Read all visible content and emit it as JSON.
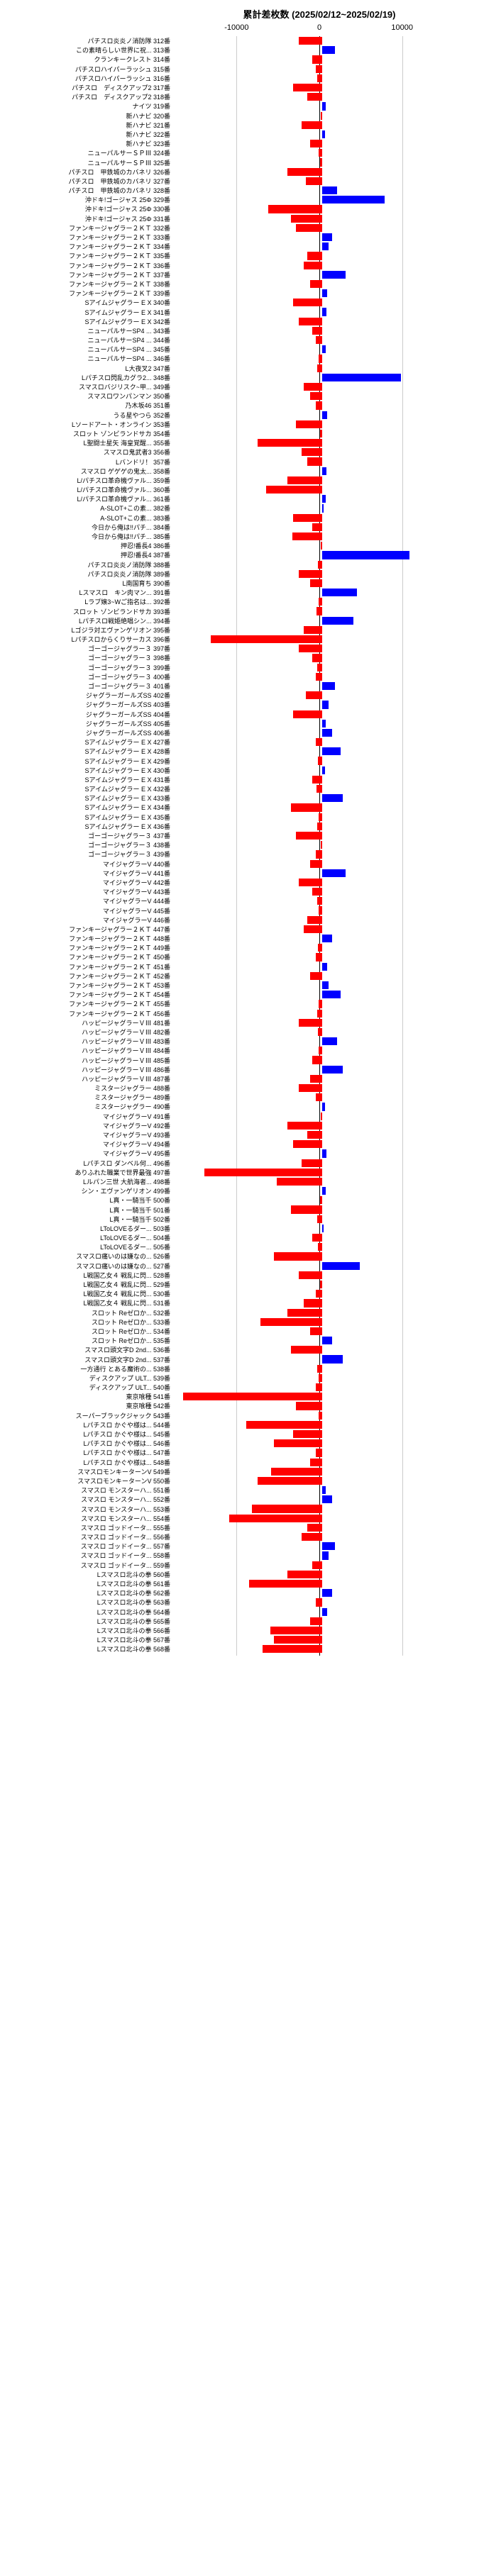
{
  "chart": {
    "title": "累計差枚数 (2025/02/12~2025/02/19)",
    "title_fontsize": 13,
    "xlim": [
      -18000,
      18000
    ],
    "xticks": [
      -10000,
      0,
      10000
    ],
    "label_width": 230,
    "bar_area_width": 420,
    "row_height": 13.2,
    "label_fontsize": 9,
    "tick_fontsize": 11,
    "neg_color": "#ff0000",
    "pos_color": "#0000ff",
    "zero_line_color": "#000000",
    "grid_line_color": "#cccccc",
    "background_color": "#ffffff",
    "data": [
      {
        "label": "パチスロ炎炎ノ消防隊",
        "n": "312番",
        "v": -2800
      },
      {
        "label": "この素晴らしい世界に祝...",
        "n": "313番",
        "v": 1500
      },
      {
        "label": "クランキークレスト",
        "n": "314番",
        "v": -1200
      },
      {
        "label": "パチスロハイパーラッシュ",
        "n": "315番",
        "v": -800
      },
      {
        "label": "パチスロハイパーラッシュ",
        "n": "316番",
        "v": -600
      },
      {
        "label": "パチスロ　ディスクアップ2",
        "n": "317番",
        "v": -3500
      },
      {
        "label": "パチスロ　ディスクアップ2",
        "n": "318番",
        "v": -1800
      },
      {
        "label": "ナイツ",
        "n": "319番",
        "v": 400
      },
      {
        "label": "新ハナビ",
        "n": "320番",
        "v": -200
      },
      {
        "label": "新ハナビ",
        "n": "321番",
        "v": -2500
      },
      {
        "label": "新ハナビ",
        "n": "322番",
        "v": 300
      },
      {
        "label": "新ハナビ",
        "n": "323番",
        "v": -1500
      },
      {
        "label": "ニューパルサーＳＰⅢ",
        "n": "324番",
        "v": -400
      },
      {
        "label": "ニューパルサーＳＰⅢ",
        "n": "325番",
        "v": -300
      },
      {
        "label": "パチスロ　甲鉄城のカバネリ",
        "n": "326番",
        "v": -4200
      },
      {
        "label": "パチスロ　甲鉄城のカバネリ",
        "n": "327番",
        "v": -2000
      },
      {
        "label": "パチスロ　甲鉄城のカバネリ",
        "n": "328番",
        "v": 1800
      },
      {
        "label": "沖ドキ!ゴージャス 25Φ",
        "n": "329番",
        "v": 7500
      },
      {
        "label": "沖ドキ!ゴージャス 25Φ",
        "n": "330番",
        "v": -6500
      },
      {
        "label": "沖ドキ!ゴージャス 25Φ",
        "n": "331番",
        "v": -3800
      },
      {
        "label": "ファンキージャグラー２ＫＴ",
        "n": "332番",
        "v": -3200
      },
      {
        "label": "ファンキージャグラー２ＫＴ",
        "n": "333番",
        "v": 1200
      },
      {
        "label": "ファンキージャグラー２ＫＴ",
        "n": "334番",
        "v": 800
      },
      {
        "label": "ファンキージャグラー２ＫＴ",
        "n": "335番",
        "v": -1800
      },
      {
        "label": "ファンキージャグラー２ＫＴ",
        "n": "336番",
        "v": -2200
      },
      {
        "label": "ファンキージャグラー２ＫＴ",
        "n": "337番",
        "v": 2800
      },
      {
        "label": "ファンキージャグラー２ＫＴ",
        "n": "338番",
        "v": -1500
      },
      {
        "label": "ファンキージャグラー２ＫＴ",
        "n": "339番",
        "v": 600
      },
      {
        "label": "Sアイムジャグラー E X",
        "n": "340番",
        "v": -3500
      },
      {
        "label": "Sアイムジャグラー E X",
        "n": "341番",
        "v": 500
      },
      {
        "label": "Sアイムジャグラー E X",
        "n": "342番",
        "v": -2800
      },
      {
        "label": "ニューパルサーSP4 ...",
        "n": "343番",
        "v": -1200
      },
      {
        "label": "ニューパルサーSP4 ...",
        "n": "344番",
        "v": -800
      },
      {
        "label": "ニューパルサーSP4 ...",
        "n": "345番",
        "v": 400
      },
      {
        "label": "ニューパルサーSP4 ...",
        "n": "346番",
        "v": -400
      },
      {
        "label": "L大夜叉2",
        "n": "347番",
        "v": -600
      },
      {
        "label": "Lパチスロ閃乱カグラ2...",
        "n": "348番",
        "v": 9500
      },
      {
        "label": "スマスロバジリスク~甲...",
        "n": "349番",
        "v": -2200
      },
      {
        "label": "スマスロワンパンマン",
        "n": "350番",
        "v": -1500
      },
      {
        "label": "乃木坂46",
        "n": "351番",
        "v": -800
      },
      {
        "label": "うる星やつら",
        "n": "352番",
        "v": 600
      },
      {
        "label": "Lソードアート・オンライン",
        "n": "353番",
        "v": -3200
      },
      {
        "label": "スロット ゾンビランドサカ",
        "n": "354番",
        "v": -300
      },
      {
        "label": "L聖闘士星矢 海皇覚醒...",
        "n": "355番",
        "v": -7800
      },
      {
        "label": "スマスロ鬼武者3",
        "n": "356番",
        "v": -2500
      },
      {
        "label": "Lバンドリ！",
        "n": "357番",
        "v": -1800
      },
      {
        "label": "スマスロ ゲゲゲの鬼太...",
        "n": "358番",
        "v": 500
      },
      {
        "label": "L/パチスロ革命機ヴァル...",
        "n": "359番",
        "v": -4200
      },
      {
        "label": "L/パチスロ革命機ヴァル...",
        "n": "360番",
        "v": -6800
      },
      {
        "label": "L/パチスロ革命機ヴァル...",
        "n": "361番",
        "v": 400
      },
      {
        "label": "A-SLOT+この素...",
        "n": "382番",
        "v": 200
      },
      {
        "label": "A-SLOT+この素...",
        "n": "383番",
        "v": -3500
      },
      {
        "label": "今日から俺は!!パチ...",
        "n": "384番",
        "v": -1200
      },
      {
        "label": "今日から俺は!!パチ...",
        "n": "385番",
        "v": -3600
      },
      {
        "label": "押忍!番長4",
        "n": "386番",
        "v": -200
      },
      {
        "label": "押忍!番長4",
        "n": "387番",
        "v": 10500
      },
      {
        "label": "パチスロ炎炎ノ消防隊",
        "n": "388番",
        "v": -500
      },
      {
        "label": "パチスロ炎炎ノ消防隊",
        "n": "389番",
        "v": -2800
      },
      {
        "label": "L南国育ち",
        "n": "390番",
        "v": -1500
      },
      {
        "label": "Lスマスロ　キン肉マン...",
        "n": "391番",
        "v": 4200
      },
      {
        "label": "Lラブ嬢3~Wご指名は...",
        "n": "392番",
        "v": -400
      },
      {
        "label": "スロット ゾンビランドサカ",
        "n": "393番",
        "v": -700
      },
      {
        "label": "Lパチスロ戦姫絶唱シン...",
        "n": "394番",
        "v": 3800
      },
      {
        "label": "Lゴジラ対エヴァンゲリオン",
        "n": "395番",
        "v": -2200
      },
      {
        "label": "Lパチスロからくりサーカス",
        "n": "396番",
        "v": -13500
      },
      {
        "label": "ゴーゴージャグラー３",
        "n": "397番",
        "v": -2800
      },
      {
        "label": "ゴーゴージャグラー３",
        "n": "398番",
        "v": -1200
      },
      {
        "label": "ゴーゴージャグラー３",
        "n": "399番",
        "v": -600
      },
      {
        "label": "ゴーゴージャグラー３",
        "n": "400番",
        "v": -800
      },
      {
        "label": "ゴーゴージャグラー３",
        "n": "401番",
        "v": 1500
      },
      {
        "label": "ジャグラーガールズSS",
        "n": "402番",
        "v": -2000
      },
      {
        "label": "ジャグラーガールズSS",
        "n": "403番",
        "v": 800
      },
      {
        "label": "ジャグラーガールズSS",
        "n": "404番",
        "v": -3500
      },
      {
        "label": "ジャグラーガールズSS",
        "n": "405番",
        "v": 400
      },
      {
        "label": "ジャグラーガールズSS",
        "n": "406番",
        "v": 1200
      },
      {
        "label": "Sアイムジャグラー E X",
        "n": "427番",
        "v": -800
      },
      {
        "label": "Sアイムジャグラー E X",
        "n": "428番",
        "v": 2200
      },
      {
        "label": "Sアイムジャグラー E X",
        "n": "429番",
        "v": -500
      },
      {
        "label": "Sアイムジャグラー E X",
        "n": "430番",
        "v": 300
      },
      {
        "label": "Sアイムジャグラー E X",
        "n": "431番",
        "v": -1200
      },
      {
        "label": "Sアイムジャグラー E X",
        "n": "432番",
        "v": -700
      },
      {
        "label": "Sアイムジャグラー E X",
        "n": "433番",
        "v": 2500
      },
      {
        "label": "Sアイムジャグラー E X",
        "n": "434番",
        "v": -3800
      },
      {
        "label": "Sアイムジャグラー E X",
        "n": "435番",
        "v": -400
      },
      {
        "label": "Sアイムジャグラー E X",
        "n": "436番",
        "v": -600
      },
      {
        "label": "ゴーゴージャグラー３",
        "n": "437番",
        "v": -3200
      },
      {
        "label": "ゴーゴージャグラー３",
        "n": "438番",
        "v": -200
      },
      {
        "label": "ゴーゴージャグラー３",
        "n": "439番",
        "v": -800
      },
      {
        "label": "マイジャグラーV",
        "n": "440番",
        "v": -1500
      },
      {
        "label": "マイジャグラーV",
        "n": "441番",
        "v": 2800
      },
      {
        "label": "マイジャグラーV",
        "n": "442番",
        "v": -2800
      },
      {
        "label": "マイジャグラーV",
        "n": "443番",
        "v": -1200
      },
      {
        "label": "マイジャグラーV",
        "n": "444番",
        "v": -600
      },
      {
        "label": "マイジャグラーV",
        "n": "445番",
        "v": -400
      },
      {
        "label": "マイジャグラーV",
        "n": "446番",
        "v": -1800
      },
      {
        "label": "ファンキージャグラー２ＫＴ",
        "n": "447番",
        "v": -2200
      },
      {
        "label": "ファンキージャグラー２ＫＴ",
        "n": "448番",
        "v": 1200
      },
      {
        "label": "ファンキージャグラー２ＫＴ",
        "n": "449番",
        "v": -500
      },
      {
        "label": "ファンキージャグラー２ＫＴ",
        "n": "450番",
        "v": -800
      },
      {
        "label": "ファンキージャグラー２ＫＴ",
        "n": "451番",
        "v": 600
      },
      {
        "label": "ファンキージャグラー２ＫＴ",
        "n": "452番",
        "v": -1500
      },
      {
        "label": "ファンキージャグラー２ＫＴ",
        "n": "453番",
        "v": 800
      },
      {
        "label": "ファンキージャグラー２ＫＴ",
        "n": "454番",
        "v": 2200
      },
      {
        "label": "ファンキージャグラー２ＫＴ",
        "n": "455番",
        "v": -400
      },
      {
        "label": "ファンキージャグラー２ＫＴ",
        "n": "456番",
        "v": -600
      },
      {
        "label": "ハッピージャグラーＶⅢ",
        "n": "481番",
        "v": -2800
      },
      {
        "label": "ハッピージャグラーＶⅢ",
        "n": "482番",
        "v": -500
      },
      {
        "label": "ハッピージャグラーＶⅢ",
        "n": "483番",
        "v": 1800
      },
      {
        "label": "ハッピージャグラーＶⅢ",
        "n": "484番",
        "v": -400
      },
      {
        "label": "ハッピージャグラーＶⅢ",
        "n": "485番",
        "v": -1200
      },
      {
        "label": "ハッピージャグラーＶⅢ",
        "n": "486番",
        "v": 2500
      },
      {
        "label": "ハッピージャグラーＶⅢ",
        "n": "487番",
        "v": -1500
      },
      {
        "label": "ミスタージャグラー",
        "n": "488番",
        "v": -2800
      },
      {
        "label": "ミスタージャグラー",
        "n": "489番",
        "v": -800
      },
      {
        "label": "ミスタージャグラー",
        "n": "490番",
        "v": 300
      },
      {
        "label": "マイジャグラーV",
        "n": "491番",
        "v": -200
      },
      {
        "label": "マイジャグラーV",
        "n": "492番",
        "v": -4200
      },
      {
        "label": "マイジャグラーV",
        "n": "493番",
        "v": -1800
      },
      {
        "label": "マイジャグラーV",
        "n": "494番",
        "v": -3500
      },
      {
        "label": "マイジャグラーV",
        "n": "495番",
        "v": 500
      },
      {
        "label": "Lパチスロ ダンベル何...",
        "n": "496番",
        "v": -2500
      },
      {
        "label": "ありふれた職業で世界最強",
        "n": "497番",
        "v": -14200
      },
      {
        "label": "Lルパン三世 大航海者...",
        "n": "498番",
        "v": -5500
      },
      {
        "label": "シン・エヴァンゲリオン",
        "n": "499番",
        "v": 400
      },
      {
        "label": "L真・一騎当千",
        "n": "500番",
        "v": -300
      },
      {
        "label": "L真・一騎当千",
        "n": "501番",
        "v": -3800
      },
      {
        "label": "L真・一騎当千",
        "n": "502番",
        "v": -600
      },
      {
        "label": "LToLOVEるダー...",
        "n": "503番",
        "v": 200
      },
      {
        "label": "LToLOVEるダー...",
        "n": "504番",
        "v": -1200
      },
      {
        "label": "LToLOVEるダー...",
        "n": "505番",
        "v": -500
      },
      {
        "label": "スマスロ痛いのは嫌なの...",
        "n": "526番",
        "v": -5800
      },
      {
        "label": "スマスロ痛いのは嫌なの...",
        "n": "527番",
        "v": 4500
      },
      {
        "label": "L戦国乙女４ 戦乱に閃...",
        "n": "528番",
        "v": -2800
      },
      {
        "label": "L戦国乙女４ 戦乱に閃...",
        "n": "529番",
        "v": -300
      },
      {
        "label": "L戦国乙女４ 戦乱に閃...",
        "n": "530番",
        "v": -800
      },
      {
        "label": "L戦国乙女４ 戦乱に閃...",
        "n": "531番",
        "v": -2200
      },
      {
        "label": "スロット Reゼロか...",
        "n": "532番",
        "v": -4200
      },
      {
        "label": "スロット Reゼロか...",
        "n": "533番",
        "v": -7500
      },
      {
        "label": "スロット Reゼロか...",
        "n": "534番",
        "v": -1500
      },
      {
        "label": "スロット Reゼロか...",
        "n": "535番",
        "v": 1200
      },
      {
        "label": "スマスロ頭文字D 2nd...",
        "n": "536番",
        "v": -3800
      },
      {
        "label": "スマスロ頭文字D 2nd...",
        "n": "537番",
        "v": 2500
      },
      {
        "label": "一方通行 とある魔術の...",
        "n": "538番",
        "v": -600
      },
      {
        "label": "ディスクアップ ULT...",
        "n": "539番",
        "v": -400
      },
      {
        "label": "ディスクアップ ULT...",
        "n": "540番",
        "v": -800
      },
      {
        "label": "東京喰種",
        "n": "541番",
        "v": -16800
      },
      {
        "label": "東京喰種",
        "n": "542番",
        "v": -3200
      },
      {
        "label": "スーパーブラックジャック",
        "n": "543番",
        "v": -400
      },
      {
        "label": "Lパチスロ かぐや様は...",
        "n": "544番",
        "v": -9200
      },
      {
        "label": "Lパチスロ かぐや様は...",
        "n": "545番",
        "v": -3500
      },
      {
        "label": "Lパチスロ かぐや様は...",
        "n": "546番",
        "v": -5800
      },
      {
        "label": "Lパチスロ かぐや様は...",
        "n": "547番",
        "v": -800
      },
      {
        "label": "Lパチスロ かぐや様は...",
        "n": "548番",
        "v": -1500
      },
      {
        "label": "スマスロモンキーターンV",
        "n": "549番",
        "v": -6200
      },
      {
        "label": "スマスロモンキーターンV",
        "n": "550番",
        "v": -7800
      },
      {
        "label": "スマスロ モンスターハ...",
        "n": "551番",
        "v": 400
      },
      {
        "label": "スマスロ モンスターハ...",
        "n": "552番",
        "v": 1200
      },
      {
        "label": "スマスロ モンスターハ...",
        "n": "553番",
        "v": -8500
      },
      {
        "label": "スマスロ モンスターハ...",
        "n": "554番",
        "v": -11200
      },
      {
        "label": "スマスロ ゴッドイータ...",
        "n": "555番",
        "v": -1800
      },
      {
        "label": "スマスロ ゴッドイータ...",
        "n": "556番",
        "v": -2500
      },
      {
        "label": "スマスロ ゴッドイータ...",
        "n": "557番",
        "v": 1500
      },
      {
        "label": "スマスロ ゴッドイータ...",
        "n": "558番",
        "v": 800
      },
      {
        "label": "スマスロ ゴッドイータ...",
        "n": "559番",
        "v": -1200
      },
      {
        "label": "Lスマスロ北斗の拳",
        "n": "560番",
        "v": -4200
      },
      {
        "label": "Lスマスロ北斗の拳",
        "n": "561番",
        "v": -8800
      },
      {
        "label": "Lスマスロ北斗の拳",
        "n": "562番",
        "v": 1200
      },
      {
        "label": "Lスマスロ北斗の拳",
        "n": "563番",
        "v": -800
      },
      {
        "label": "Lスマスロ北斗の拳",
        "n": "564番",
        "v": 600
      },
      {
        "label": "Lスマスロ北斗の拳",
        "n": "565番",
        "v": -1500
      },
      {
        "label": "Lスマスロ北斗の拳",
        "n": "566番",
        "v": -6300
      },
      {
        "label": "Lスマスロ北斗の拳",
        "n": "567番",
        "v": -5800
      },
      {
        "label": "Lスマスロ北斗の拳",
        "n": "568番",
        "v": -7200
      }
    ]
  }
}
